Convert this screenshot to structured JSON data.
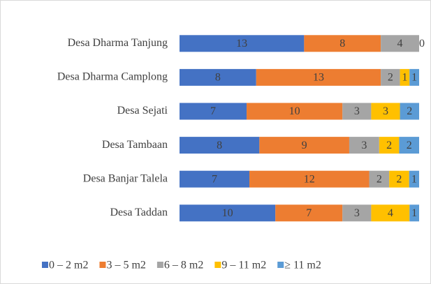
{
  "chart_data": {
    "type": "bar",
    "orientation": "horizontal",
    "stacking": "percent",
    "categories": [
      "Desa Dharma Tanjung",
      "Desa Dharma Camplong",
      "Desa Sejati",
      "Desa Tambaan",
      "Desa Banjar Talela",
      "Desa Taddan"
    ],
    "series": [
      {
        "name": "0 – 2 m2",
        "color": "#4472c4",
        "values": [
          13,
          8,
          7,
          8,
          7,
          10
        ]
      },
      {
        "name": "3 – 5 m2",
        "color": "#ed7d31",
        "values": [
          8,
          13,
          10,
          9,
          12,
          7
        ]
      },
      {
        "name": "6 – 8 m2",
        "color": "#a5a5a5",
        "values": [
          4,
          2,
          3,
          3,
          2,
          3
        ]
      },
      {
        "name": "9 – 11 m2",
        "color": "#ffc000",
        "values": [
          0,
          1,
          3,
          2,
          2,
          4
        ]
      },
      {
        "name": "≥ 11 m2",
        "color": "#5b9bd5",
        "values": [
          null,
          1,
          2,
          2,
          1,
          1
        ]
      }
    ],
    "legend": "bottom"
  }
}
